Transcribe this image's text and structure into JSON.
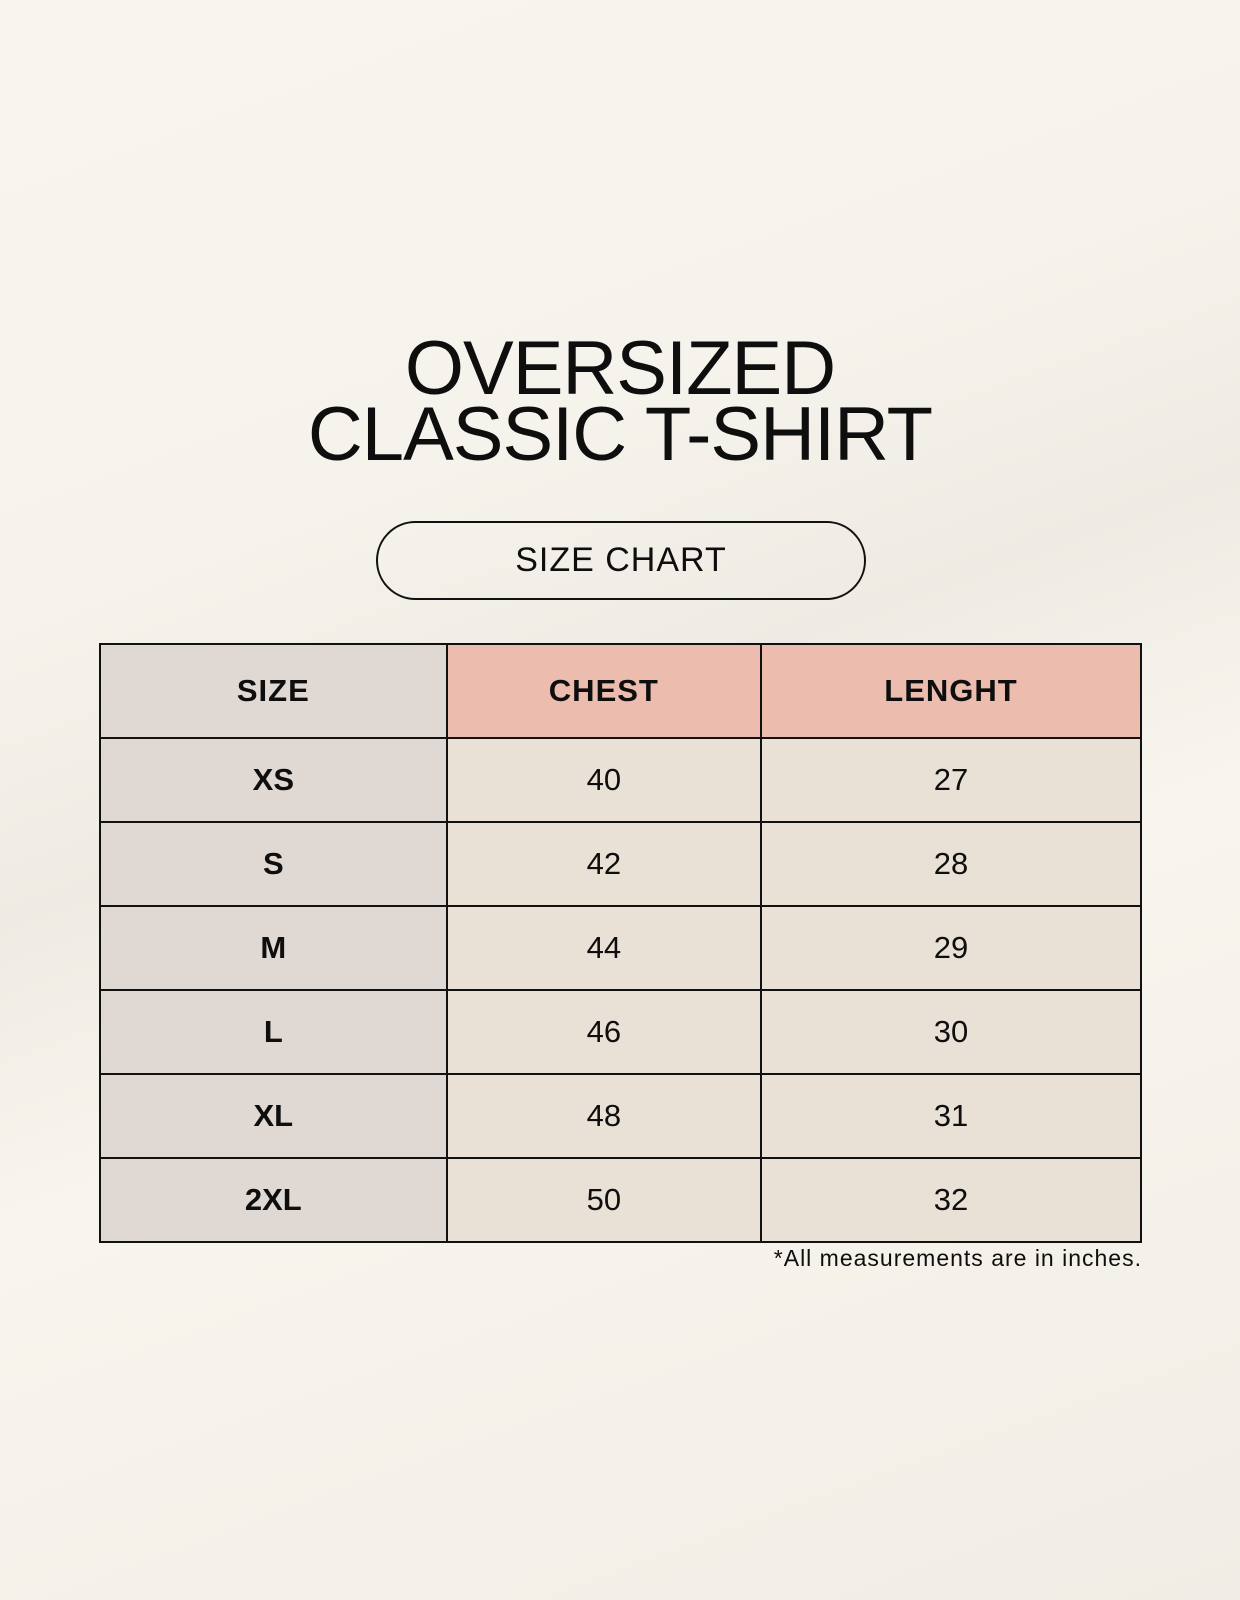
{
  "title": {
    "line1": "OVERSIZED",
    "line2": "CLASSIC T-SHIRT"
  },
  "badge": "SIZE CHART",
  "table": {
    "headers": [
      "SIZE",
      "CHEST",
      "LENGHT"
    ],
    "rows": [
      [
        "XS",
        "40",
        "27"
      ],
      [
        "S",
        "42",
        "28"
      ],
      [
        "M",
        "44",
        "29"
      ],
      [
        "L",
        "46",
        "30"
      ],
      [
        "XL",
        "48",
        "31"
      ],
      [
        "2XL",
        "50",
        "32"
      ]
    ]
  },
  "footnote": "*All measurements are in inches.",
  "colors": {
    "header_accent": "#ecbcae",
    "size_column": "#e0d8d2",
    "value_cells": "#e9e1d6"
  }
}
